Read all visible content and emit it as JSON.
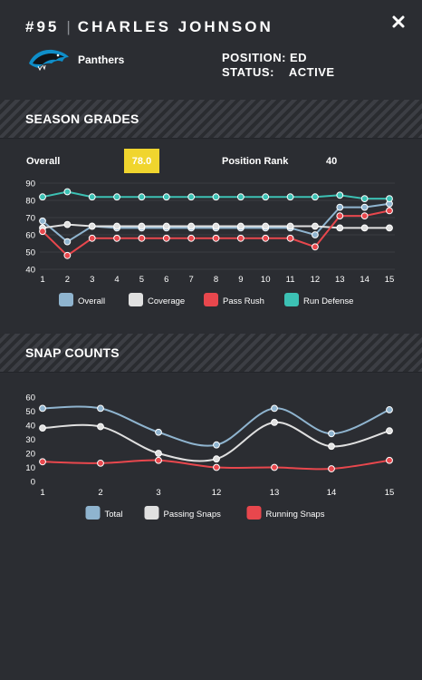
{
  "header": {
    "number": "#95",
    "player_name": "CHARLES JOHNSON",
    "team": "Panthers",
    "position_label": "POSITION:",
    "position_value": "ED",
    "status_label": "STATUS:",
    "status_value": "ACTIVE",
    "close_icon": "close-icon",
    "logo_icon": "panther-logo-icon"
  },
  "season_grades": {
    "title": "SEASON GRADES",
    "overall_label": "Overall",
    "overall_value": "78.0",
    "position_rank_label": "Position Rank",
    "position_rank_value": "40"
  },
  "snap_counts": {
    "title": "SNAP COUNTS"
  },
  "colors": {
    "overall": "#8fb4cf",
    "coverage": "#e0e0e0",
    "pass_rush": "#e8474d",
    "run_defense": "#3cc1b4",
    "total": "#8fb4cf",
    "passing": "#e0e0e0",
    "running": "#e8474d",
    "badge": "#f0d52e"
  },
  "chart_data": [
    {
      "type": "line",
      "x": [
        1,
        2,
        3,
        4,
        5,
        6,
        7,
        8,
        9,
        10,
        11,
        12,
        13,
        14,
        15
      ],
      "ylim": [
        40,
        90
      ],
      "yticks": [
        40,
        50,
        60,
        70,
        80,
        90
      ],
      "grid": true,
      "legend": "bottom",
      "series": [
        {
          "name": "Overall",
          "values": [
            68,
            56,
            65,
            64,
            64,
            64,
            64,
            64,
            64,
            64,
            64,
            60,
            76,
            76,
            78
          ]
        },
        {
          "name": "Coverage",
          "values": [
            64,
            66,
            65,
            65,
            65,
            65,
            65,
            65,
            65,
            65,
            65,
            65,
            64,
            64,
            64
          ]
        },
        {
          "name": "Pass Rush",
          "values": [
            62,
            48,
            58,
            58,
            58,
            58,
            58,
            58,
            58,
            58,
            58,
            53,
            71,
            71,
            74
          ]
        },
        {
          "name": "Run Defense",
          "values": [
            82,
            85,
            82,
            82,
            82,
            82,
            82,
            82,
            82,
            82,
            82,
            82,
            83,
            81,
            81
          ]
        }
      ]
    },
    {
      "type": "line",
      "categories": [
        "1",
        "2",
        "3",
        "12",
        "13",
        "14",
        "15"
      ],
      "ylim": [
        0,
        60
      ],
      "yticks": [
        0,
        10,
        20,
        30,
        40,
        50,
        60
      ],
      "grid": false,
      "legend": "bottom",
      "series": [
        {
          "name": "Total",
          "values": [
            52,
            52,
            35,
            26,
            52,
            34,
            51
          ]
        },
        {
          "name": "Passing Snaps",
          "values": [
            38,
            39,
            20,
            16,
            42,
            25,
            36
          ]
        },
        {
          "name": "Running Snaps",
          "values": [
            14,
            13,
            15,
            10,
            10,
            9,
            15
          ]
        }
      ]
    }
  ]
}
